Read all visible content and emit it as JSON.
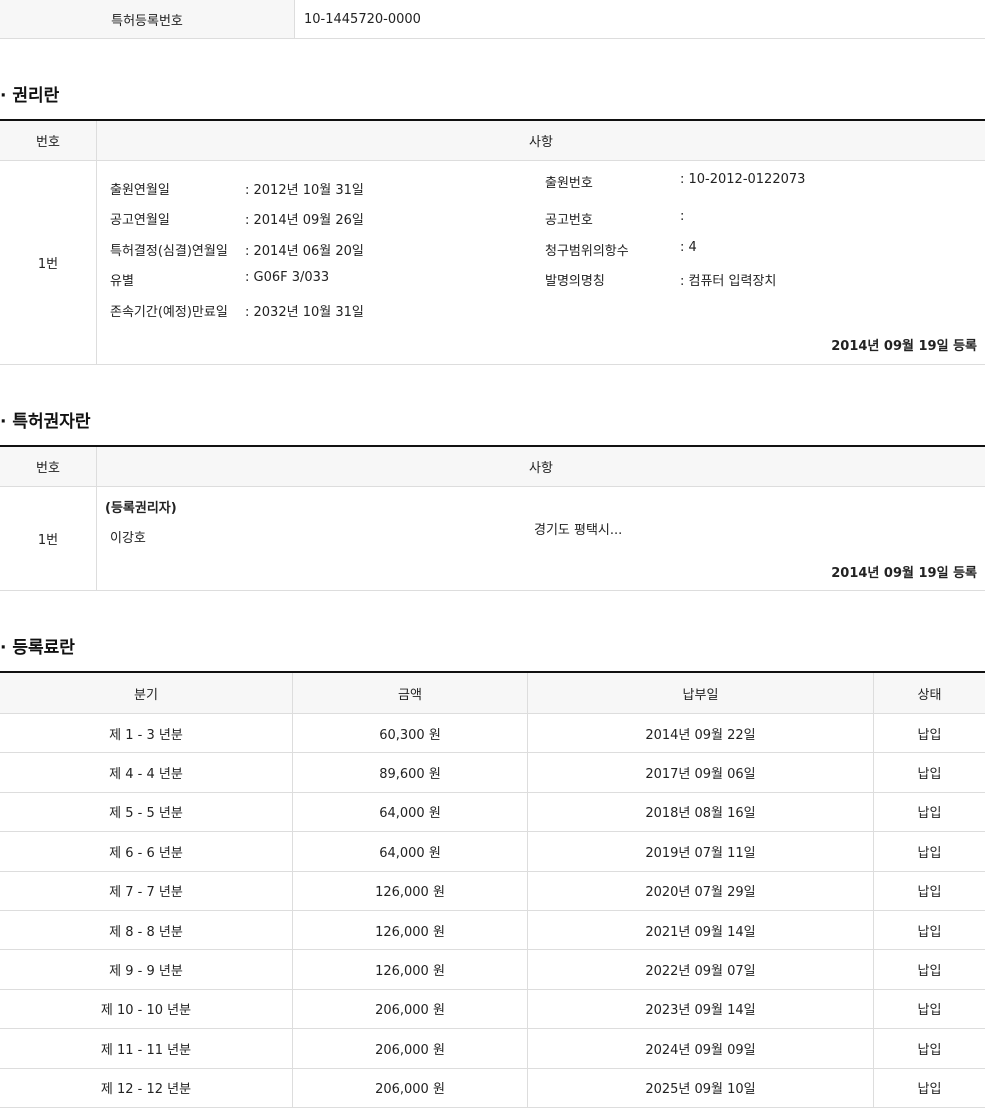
{
  "registration": {
    "label": "특허등록번호",
    "value": "10-1445720-0000"
  },
  "rights": {
    "title": "· 권리란",
    "header": {
      "no": "번호",
      "item": "사항"
    },
    "row": {
      "no": "1번",
      "left": [
        {
          "label": "출원연월일",
          "value": ": 2012년 10월 31일"
        },
        {
          "label": "공고연월일",
          "value": ": 2014년 09월 26일"
        },
        {
          "label": "특허결정(심결)연월일",
          "value": ": 2014년 06월 20일"
        },
        {
          "label": "유별",
          "value": ": G06F 3/033"
        },
        {
          "label": "존속기간(예정)만료일",
          "value": ": 2032년 10월 31일"
        }
      ],
      "right": [
        {
          "label": "출원번호",
          "value": ": 10-2012-0122073"
        },
        {
          "label": "공고번호",
          "value": ":"
        },
        {
          "label": "청구범위의항수",
          "value": ": 4"
        },
        {
          "label": "발명의명칭",
          "value": ": 컴퓨터 입력장치"
        }
      ],
      "registered": "2014년 09월 19일 등록"
    }
  },
  "holders": {
    "title": "· 특허권자란",
    "header": {
      "no": "번호",
      "item": "사항"
    },
    "row": {
      "no": "1번",
      "role": "(등록권리자)",
      "name": "이강호",
      "address": "경기도 평택시...",
      "registered": "2014년 09월 19일 등록"
    }
  },
  "fees": {
    "title": "· 등록료란",
    "columns": [
      "분기",
      "금액",
      "납부일",
      "상태"
    ],
    "rows": [
      [
        "제 1 - 3 년분",
        "60,300 원",
        "2014년 09월 22일",
        "납입"
      ],
      [
        "제 4 - 4 년분",
        "89,600 원",
        "2017년 09월 06일",
        "납입"
      ],
      [
        "제 5 - 5 년분",
        "64,000 원",
        "2018년 08월 16일",
        "납입"
      ],
      [
        "제 6 - 6 년분",
        "64,000 원",
        "2019년 07월 11일",
        "납입"
      ],
      [
        "제 7 - 7 년분",
        "126,000 원",
        "2020년 07월 29일",
        "납입"
      ],
      [
        "제 8 - 8 년분",
        "126,000 원",
        "2021년 09월 14일",
        "납입"
      ],
      [
        "제 9 - 9 년분",
        "126,000 원",
        "2022년 09월 07일",
        "납입"
      ],
      [
        "제 10 - 10 년분",
        "206,000 원",
        "2023년 09월 14일",
        "납입"
      ],
      [
        "제 11 - 11 년분",
        "206,000 원",
        "2024년 09월 09일",
        "납입"
      ],
      [
        "제 12 - 12 년분",
        "206,000 원",
        "2025년 09월 10일",
        "납입"
      ]
    ]
  }
}
